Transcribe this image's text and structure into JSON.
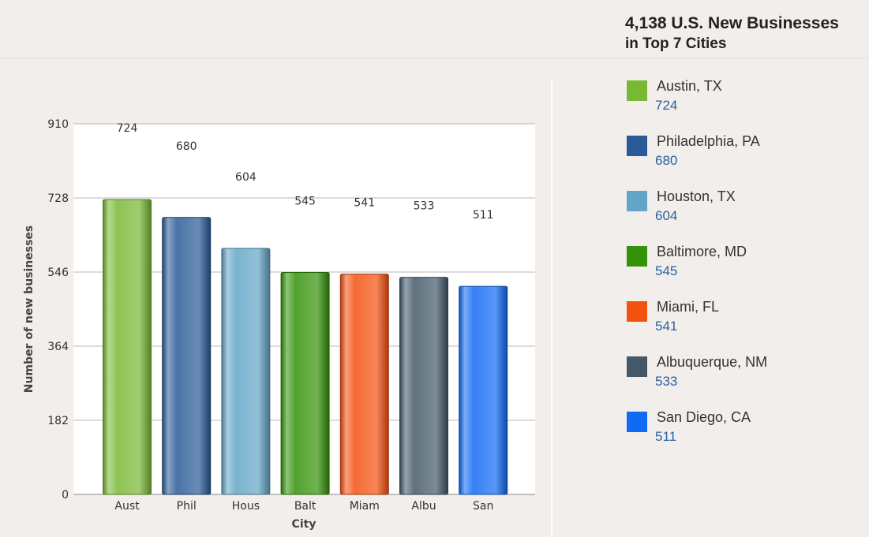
{
  "panel": {
    "title_line1": "4,138 U.S. New Businesses",
    "title_line2": "in Top 7 Cities"
  },
  "legend": [
    {
      "name": "Austin, TX",
      "value": "724",
      "color": "#78b832"
    },
    {
      "name": "Philadelphia, PA",
      "value": "680",
      "color": "#2a5a98"
    },
    {
      "name": "Houston, TX",
      "value": "604",
      "color": "#62a5c6"
    },
    {
      "name": "Baltimore, MD",
      "value": "545",
      "color": "#349208"
    },
    {
      "name": "Miami, FL",
      "value": "541",
      "color": "#f45010"
    },
    {
      "name": "Albuquerque, NM",
      "value": "533",
      "color": "#445968"
    },
    {
      "name": "San Diego, CA",
      "value": "511",
      "color": "#116af4"
    }
  ],
  "chart_data": {
    "type": "bar",
    "categories": [
      "Aust",
      "Phil",
      "Hous",
      "Balt",
      "Miam",
      "Albu",
      "San"
    ],
    "values": [
      724,
      680,
      604,
      545,
      541,
      533,
      511
    ],
    "colors": [
      "#78b832",
      "#2a5a98",
      "#62a5c6",
      "#349208",
      "#f45010",
      "#445968",
      "#116af4"
    ],
    "xlabel": "City",
    "ylabel": "Number of new businesses",
    "ylim": [
      0,
      910
    ],
    "yticks": [
      0,
      182,
      364,
      546,
      728,
      910
    ],
    "grid": true,
    "legend_position": "right"
  }
}
